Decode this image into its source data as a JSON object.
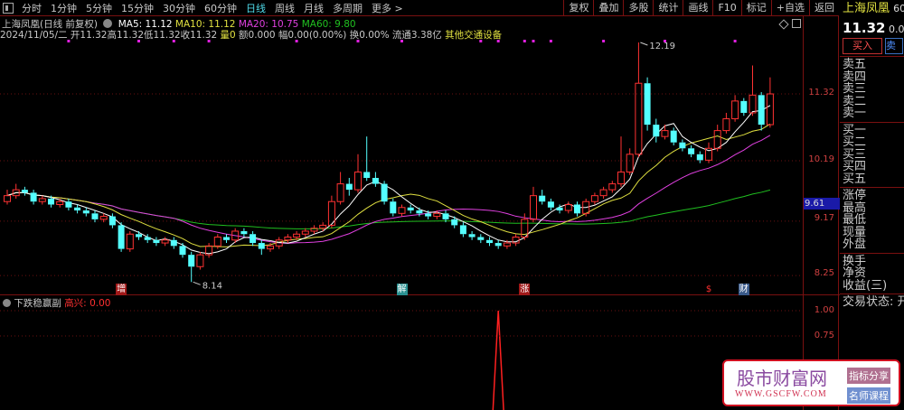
{
  "toolbar": {
    "tabs": [
      "分时",
      "1分钟",
      "5分钟",
      "15分钟",
      "30分钟",
      "60分钟",
      "日线",
      "周线",
      "月线",
      "多周期",
      "更多 >"
    ],
    "active": "日线",
    "right_buttons": [
      "复权",
      "叠加",
      "多股",
      "统计",
      "画线",
      "F10",
      "标记",
      "+自选",
      "返回"
    ]
  },
  "info": {
    "title": "上海凤凰(日线 前复权)",
    "ma5": "MA5: 11.12",
    "ma10": "MA10: 11.12",
    "ma20": "MA20: 10.75",
    "ma60": "MA60: 9.80",
    "date": "2024/11/05/二",
    "open": "开11.32",
    "high": "高11.32",
    "low": "低11.32",
    "close": "收11.32",
    "vol": "量0",
    "amount": "额0.000",
    "range": "幅0.00(0.00%)",
    "turnover": "换0.00%",
    "float": "流通3.38亿",
    "sector": "其他交通设备"
  },
  "colors": {
    "up": "#ff3232",
    "down": "#54ffff",
    "ma5": "#ffffff",
    "ma10": "#e0e040",
    "ma20": "#e040e0",
    "ma60": "#20c020",
    "grid": "#7a1010",
    "signal": "#e020e0"
  },
  "price_axis": {
    "labels": [
      "11.32",
      "10.19",
      "9.17",
      "8.25"
    ],
    "current": "9.61"
  },
  "annotations": {
    "high": "12.19",
    "low": "8.14"
  },
  "markers": [
    {
      "text": "增",
      "bg": "#a01818",
      "index": 13
    },
    {
      "text": "解",
      "bg": "#2a9090",
      "index": 45
    },
    {
      "text": "涨",
      "bg": "#a01818",
      "index": 59
    },
    {
      "text": "$",
      "bg": "",
      "index": 80
    },
    {
      "text": "财",
      "bg": "#3a5a8a",
      "index": 84
    }
  ],
  "chart_data": {
    "type": "candlestick",
    "ylim": [
      8.0,
      12.4
    ],
    "ohlc": [
      [
        9.5,
        9.7,
        9.45,
        9.6
      ],
      [
        9.6,
        9.8,
        9.55,
        9.7
      ],
      [
        9.7,
        9.75,
        9.6,
        9.65
      ],
      [
        9.65,
        9.7,
        9.45,
        9.5
      ],
      [
        9.5,
        9.6,
        9.45,
        9.55
      ],
      [
        9.55,
        9.6,
        9.4,
        9.45
      ],
      [
        9.45,
        9.55,
        9.4,
        9.5
      ],
      [
        9.5,
        9.55,
        9.35,
        9.4
      ],
      [
        9.4,
        9.45,
        9.3,
        9.35
      ],
      [
        9.35,
        9.4,
        9.25,
        9.3
      ],
      [
        9.3,
        9.35,
        9.15,
        9.2
      ],
      [
        9.2,
        9.3,
        9.15,
        9.25
      ],
      [
        9.25,
        9.3,
        9.05,
        9.1
      ],
      [
        9.1,
        9.15,
        8.65,
        8.7
      ],
      [
        8.7,
        9.0,
        8.65,
        8.95
      ],
      [
        8.95,
        9.0,
        8.85,
        8.9
      ],
      [
        8.9,
        8.95,
        8.8,
        8.85
      ],
      [
        8.85,
        8.9,
        8.75,
        8.8
      ],
      [
        8.8,
        8.9,
        8.75,
        8.85
      ],
      [
        8.85,
        8.9,
        8.7,
        8.75
      ],
      [
        8.75,
        8.8,
        8.55,
        8.6
      ],
      [
        8.6,
        8.65,
        8.14,
        8.4
      ],
      [
        8.4,
        8.65,
        8.35,
        8.6
      ],
      [
        8.6,
        8.8,
        8.55,
        8.75
      ],
      [
        8.75,
        8.95,
        8.7,
        8.9
      ],
      [
        8.9,
        8.95,
        8.8,
        8.85
      ],
      [
        8.85,
        9.05,
        8.8,
        9.0
      ],
      [
        9.0,
        9.05,
        8.9,
        8.95
      ],
      [
        8.95,
        9.0,
        8.75,
        8.8
      ],
      [
        8.8,
        8.85,
        8.6,
        8.7
      ],
      [
        8.7,
        8.8,
        8.65,
        8.75
      ],
      [
        8.75,
        8.9,
        8.7,
        8.85
      ],
      [
        8.85,
        8.95,
        8.8,
        8.9
      ],
      [
        8.9,
        9.0,
        8.85,
        8.95
      ],
      [
        8.95,
        9.05,
        8.9,
        9.0
      ],
      [
        9.0,
        9.1,
        8.95,
        9.05
      ],
      [
        9.05,
        9.15,
        9.0,
        9.1
      ],
      [
        9.1,
        9.6,
        9.05,
        9.5
      ],
      [
        9.5,
        10.0,
        9.45,
        9.8
      ],
      [
        9.8,
        9.9,
        9.6,
        9.7
      ],
      [
        9.7,
        10.3,
        9.65,
        10.0
      ],
      [
        10.0,
        10.6,
        9.85,
        9.9
      ],
      [
        9.9,
        10.0,
        9.75,
        9.8
      ],
      [
        9.8,
        9.85,
        9.45,
        9.5
      ],
      [
        9.5,
        9.55,
        9.25,
        9.3
      ],
      [
        9.3,
        9.45,
        9.25,
        9.4
      ],
      [
        9.4,
        9.45,
        9.3,
        9.35
      ],
      [
        9.35,
        9.4,
        9.25,
        9.3
      ],
      [
        9.3,
        9.35,
        9.2,
        9.25
      ],
      [
        9.25,
        9.35,
        9.2,
        9.3
      ],
      [
        9.3,
        9.35,
        9.15,
        9.2
      ],
      [
        9.2,
        9.25,
        9.05,
        9.1
      ],
      [
        9.1,
        9.15,
        8.9,
        8.95
      ],
      [
        8.95,
        9.0,
        8.85,
        8.9
      ],
      [
        8.9,
        8.95,
        8.8,
        8.85
      ],
      [
        8.85,
        8.9,
        8.75,
        8.8
      ],
      [
        8.8,
        8.85,
        8.7,
        8.75
      ],
      [
        8.75,
        8.85,
        8.7,
        8.8
      ],
      [
        8.8,
        8.95,
        8.75,
        8.9
      ],
      [
        8.9,
        9.3,
        8.85,
        9.2
      ],
      [
        9.2,
        9.75,
        9.15,
        9.6
      ],
      [
        9.6,
        9.7,
        9.45,
        9.5
      ],
      [
        9.5,
        9.55,
        9.35,
        9.4
      ],
      [
        9.4,
        9.45,
        9.3,
        9.35
      ],
      [
        9.35,
        9.5,
        9.3,
        9.45
      ],
      [
        9.45,
        9.5,
        9.25,
        9.3
      ],
      [
        9.3,
        9.55,
        9.25,
        9.5
      ],
      [
        9.5,
        9.65,
        9.45,
        9.6
      ],
      [
        9.6,
        9.75,
        9.55,
        9.7
      ],
      [
        9.7,
        9.85,
        9.65,
        9.8
      ],
      [
        9.8,
        10.6,
        9.75,
        10.0
      ],
      [
        10.0,
        10.4,
        9.95,
        10.3
      ],
      [
        10.3,
        12.19,
        10.25,
        11.5
      ],
      [
        11.5,
        11.6,
        10.7,
        10.8
      ],
      [
        10.8,
        10.9,
        10.5,
        10.6
      ],
      [
        10.6,
        10.8,
        10.55,
        10.7
      ],
      [
        10.7,
        10.75,
        10.45,
        10.5
      ],
      [
        10.5,
        10.55,
        10.35,
        10.4
      ],
      [
        10.4,
        10.45,
        10.25,
        10.3
      ],
      [
        10.3,
        10.35,
        10.15,
        10.2
      ],
      [
        10.2,
        10.5,
        10.15,
        10.4
      ],
      [
        10.4,
        10.8,
        10.35,
        10.7
      ],
      [
        10.7,
        11.0,
        10.65,
        10.9
      ],
      [
        10.9,
        11.3,
        10.85,
        11.2
      ],
      [
        11.2,
        11.25,
        10.95,
        11.0
      ],
      [
        11.0,
        11.8,
        10.95,
        11.3
      ],
      [
        11.3,
        11.35,
        10.7,
        10.8
      ],
      [
        10.8,
        11.6,
        10.75,
        11.32
      ]
    ],
    "signal_dots": [
      7,
      15,
      19,
      23,
      33,
      40,
      45,
      54,
      56,
      59,
      60,
      62,
      68,
      75,
      83
    ],
    "indicator": {
      "name": "下跌稳赢副",
      "label": "高兴: 0.00",
      "axis": [
        "1.00",
        "0.75"
      ],
      "ylim": [
        0,
        1.4
      ],
      "spikes": [
        {
          "index": 56,
          "value": 1.0
        }
      ]
    }
  },
  "panel": {
    "name": "上海凤凰",
    "code": "60",
    "price": "11.32",
    "change": "0.0",
    "buy": "买入",
    "sell": "卖",
    "asks": [
      "卖五",
      "卖四",
      "卖三",
      "卖二",
      "卖一"
    ],
    "bids": [
      "买一",
      "买二",
      "买三",
      "买四",
      "买五"
    ],
    "stats": [
      "涨停",
      "最高",
      "最低",
      "现量",
      "外盘"
    ],
    "stats2": [
      "换手",
      "净资",
      "收益(三)"
    ],
    "status": "交易状态: 开"
  },
  "watermark": {
    "name": "股市财富网",
    "url": "WWW.GSCFW.COM",
    "tag1": "指标分享",
    "tag2": "名师课程"
  }
}
